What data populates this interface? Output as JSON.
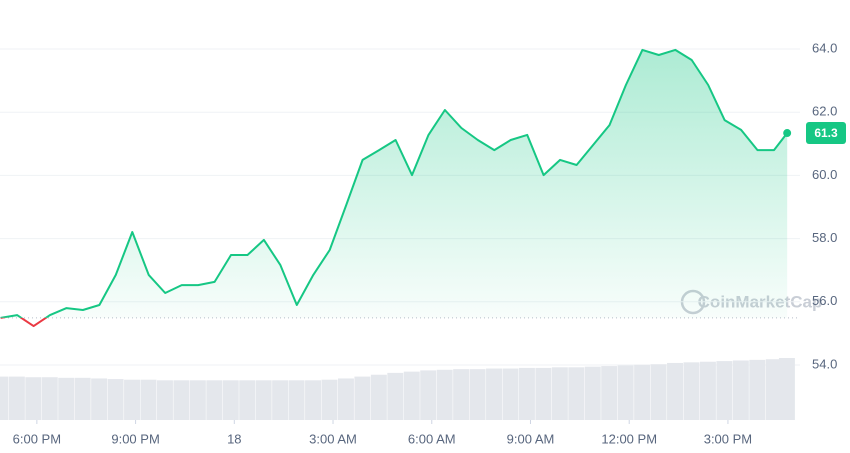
{
  "chart_data": {
    "type": "line",
    "x": [
      16.9,
      17.4,
      17.9,
      18.4,
      18.9,
      19.4,
      19.9,
      20.4,
      20.9,
      21.4,
      21.9,
      22.4,
      22.9,
      23.4,
      23.9,
      24.4,
      24.9,
      25.4,
      25.9,
      26.4,
      26.9,
      27.4,
      27.9,
      28.4,
      28.9,
      29.4,
      29.9,
      30.4,
      30.9,
      31.4,
      31.9,
      32.4,
      32.9,
      33.4,
      33.9,
      34.4,
      34.9,
      35.4,
      35.9,
      36.4,
      36.9,
      37.4,
      37.9,
      38.4,
      38.9,
      39.4,
      39.9,
      40.4,
      40.8
    ],
    "series": [
      {
        "color": "#16c784",
        "values": [
          55.49,
          55.58,
          55.23,
          55.58,
          55.8,
          55.74,
          55.9,
          56.85,
          58.21,
          56.85,
          56.28,
          56.53,
          56.53,
          56.63,
          57.48,
          57.48,
          57.96,
          57.16,
          55.9,
          56.85,
          57.64,
          59.06,
          60.49,
          60.8,
          61.12,
          60.01,
          61.28,
          62.07,
          61.5,
          61.12,
          60.8,
          61.12,
          61.28,
          60.01,
          60.49,
          60.33,
          60.96,
          61.59,
          62.86,
          63.97,
          63.81,
          63.97,
          63.65,
          62.86,
          61.75,
          61.44,
          60.8,
          60.8,
          61.34
        ]
      }
    ],
    "below_color": "#ea3943",
    "baseline": 55.49,
    "volume": [
      70,
      70,
      69,
      69,
      68,
      68,
      67,
      66,
      65,
      65,
      64,
      64,
      64,
      64,
      64,
      64,
      64,
      64,
      64,
      64,
      65,
      67,
      70,
      73,
      76,
      78,
      80,
      81,
      82,
      82,
      83,
      83,
      84,
      84,
      85,
      85,
      86,
      87,
      88,
      89,
      90,
      92,
      93,
      94,
      95,
      96,
      97,
      98,
      100
    ],
    "last_label": "61.3",
    "watermark": "CoinMarketCap",
    "xlim": [
      16.88,
      41.19
    ],
    "xticks": [
      {
        "value": 18,
        "label": "6:00 PM"
      },
      {
        "value": 21,
        "label": "9:00 PM"
      },
      {
        "value": 24,
        "label": "18"
      },
      {
        "value": 27,
        "label": "3:00 AM"
      },
      {
        "value": 30,
        "label": "6:00 AM"
      },
      {
        "value": 33,
        "label": "9:00 AM"
      },
      {
        "value": 36,
        "label": "12:00 PM"
      },
      {
        "value": 39,
        "label": "3:00 PM"
      }
    ],
    "ylim": [
      52.26,
      65.55
    ],
    "yticks": [
      {
        "value": 54,
        "label": "54.0"
      },
      {
        "value": 56,
        "label": "56.0"
      },
      {
        "value": 58,
        "label": "58.0"
      },
      {
        "value": 60,
        "label": "60.0"
      },
      {
        "value": 62,
        "label": "62.0"
      },
      {
        "value": 64,
        "label": "64.0"
      }
    ],
    "grid": true
  }
}
